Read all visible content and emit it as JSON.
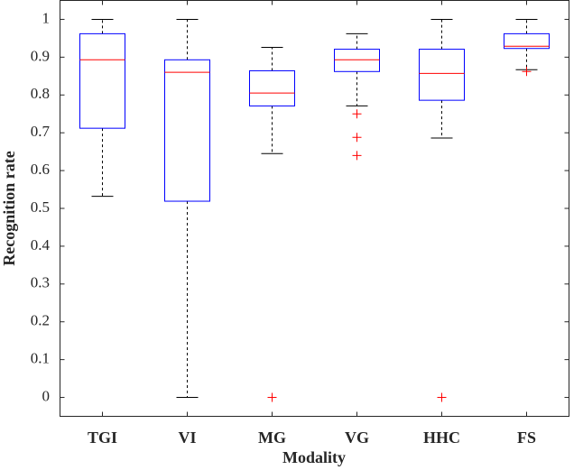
{
  "chart_data": {
    "type": "box",
    "x_label": "Modality",
    "y_label": "Recognition rate",
    "categories": [
      "TGI",
      "VI",
      "MG",
      "VG",
      "HHC",
      "FS"
    ],
    "whisker_low": [
      0.532,
      0,
      0.645,
      0.771,
      0.686,
      0.867
    ],
    "q1": [
      0.712,
      0.519,
      0.771,
      0.862,
      0.786,
      0.923
    ],
    "median": [
      0.893,
      0.86,
      0.805,
      0.893,
      0.857,
      0.929
    ],
    "q3": [
      0.962,
      0.893,
      0.864,
      0.921,
      0.921,
      0.962
    ],
    "whisker_high": [
      1,
      1,
      0.926,
      0.962,
      1,
      1
    ],
    "outliers": [
      [],
      [],
      [
        0
      ],
      [
        0.75,
        0.688,
        0.64
      ],
      [
        0
      ],
      [
        0.862
      ]
    ],
    "box_color": "#0000ff",
    "median_color": "#ff0000",
    "whisker_color": "#000000",
    "outlier_color": "#ff0000",
    "ylim": [
      -0.05,
      1.05
    ],
    "yticks": [
      0,
      0.1,
      0.2,
      0.3,
      0.4,
      0.5,
      0.6,
      0.7,
      0.8,
      0.9,
      1
    ]
  }
}
